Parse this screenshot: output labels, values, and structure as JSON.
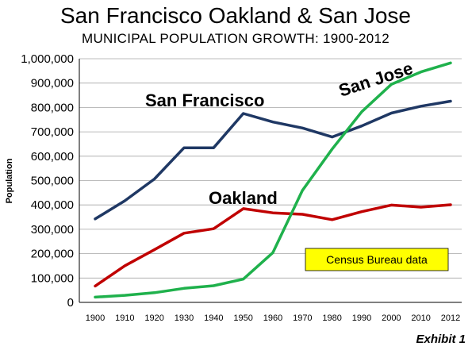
{
  "chart_data": {
    "type": "line",
    "title": "San Francisco Oakland & San Jose",
    "subtitle": "MUNICIPAL POPULATION GROWTH: 1900-2012",
    "ylabel": "Population",
    "xlabel": "",
    "ylim": [
      0,
      1000000
    ],
    "yticks": [
      "0",
      "100,000",
      "200,000",
      "300,000",
      "400,000",
      "500,000",
      "600,000",
      "700,000",
      "800,000",
      "900,000",
      "1,000,000"
    ],
    "categories": [
      "1900",
      "1910",
      "1920",
      "1930",
      "1940",
      "1950",
      "1960",
      "1970",
      "1980",
      "1990",
      "2000",
      "2010",
      "2012"
    ],
    "grid": true,
    "series": [
      {
        "name": "San Francisco",
        "color": "#1f3864",
        "values": [
          342782,
          416912,
          506676,
          634394,
          634536,
          775357,
          740316,
          715674,
          678974,
          723959,
          776733,
          805235,
          825863
        ]
      },
      {
        "name": "Oakland",
        "color": "#c00000",
        "values": [
          66960,
          150174,
          216261,
          284063,
          302163,
          384575,
          367548,
          361561,
          339337,
          372242,
          399484,
          390724,
          400740
        ]
      },
      {
        "name": "San Jose",
        "color": "#1fb14c",
        "values": [
          21500,
          28946,
          39642,
          57651,
          68457,
          95280,
          204196,
          459913,
          629400,
          782248,
          894943,
          945942,
          982765
        ]
      }
    ],
    "annotation": "Census Bureau data",
    "footer": "Exhibit 1"
  },
  "colors": {
    "note_fill": "#ffff00",
    "grid": "#a6a6a6"
  }
}
